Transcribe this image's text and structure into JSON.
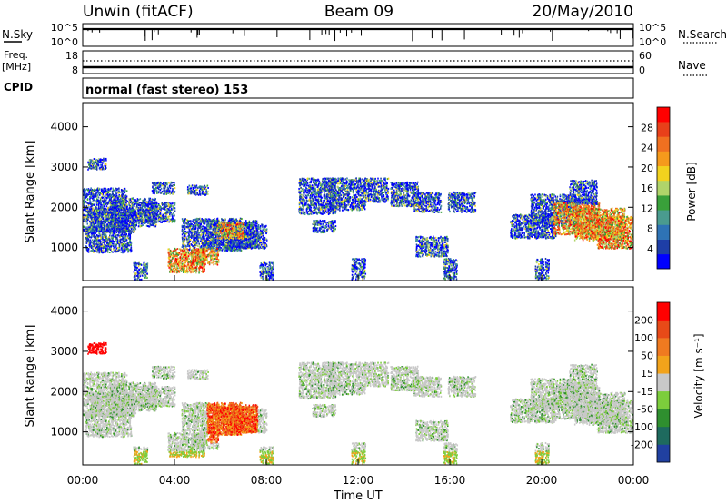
{
  "header": {
    "station": "Unwin  (fitACF)",
    "beam": "Beam 09",
    "date": "20/May/2010"
  },
  "nsky_panel": {
    "label": "N.Sky",
    "left_ticks": [
      "10^5",
      "10^0"
    ],
    "right_ticks": [
      "10^5",
      "10^0"
    ],
    "right_label": "N.Search"
  },
  "freq_panel": {
    "label_line1": "Freq.",
    "label_line2": "[MHz]",
    "left_ticks": [
      "18",
      "8"
    ],
    "right_ticks": [
      "60",
      "0"
    ],
    "right_label": "Nave"
  },
  "cpid_panel": {
    "label": "CPID",
    "text": "normal (fast stereo) 153"
  },
  "chart_data": [
    {
      "type": "heatmap",
      "name": "power",
      "ylabel": "Slant Range [km]",
      "ylim": [
        180,
        4600
      ],
      "yticks": [
        "4000",
        "3000",
        "2000",
        "1000"
      ],
      "colorbar": {
        "label": "Power [dB]",
        "ticks": [
          "28",
          "24",
          "20",
          "16",
          "12",
          "8",
          "4"
        ],
        "colors": [
          "#0000ff",
          "#1e3ea6",
          "#2e73b5",
          "#4a9b8f",
          "#39a03a",
          "#b0d46a",
          "#f2d21e",
          "#f59a1c",
          "#f07020",
          "#e8401a",
          "#ff0000"
        ]
      }
    },
    {
      "type": "heatmap",
      "name": "velocity",
      "ylabel": "Slant Range [km]",
      "ylim": [
        180,
        4600
      ],
      "yticks": [
        "4000",
        "3000",
        "2000",
        "1000"
      ],
      "colorbar": {
        "label": "Velocity [m s⁻¹]",
        "ticks": [
          "200",
          "100",
          "50",
          "15",
          "-15",
          "-50",
          "-100",
          "-200"
        ],
        "colors": [
          "#2040a0",
          "#1e6a5e",
          "#2f8f2f",
          "#7ccd3c",
          "#c8c8c8",
          "#f2a31b",
          "#ef7a20",
          "#e84a18",
          "#ff0000"
        ]
      }
    }
  ],
  "time_axis": {
    "ticks": [
      "00:00",
      "04:00",
      "08:00",
      "12:00",
      "16:00",
      "20:00",
      "00:00"
    ],
    "label": "Time UT"
  }
}
